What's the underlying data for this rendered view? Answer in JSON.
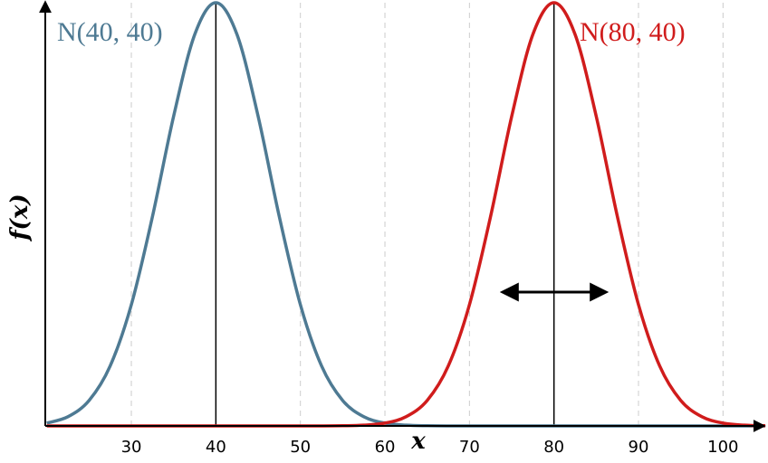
{
  "chart_data": {
    "type": "line",
    "x": [
      20,
      22.5,
      25,
      27.5,
      30,
      32.5,
      35,
      37.5,
      40,
      42.5,
      45,
      47.5,
      50,
      52.5,
      55,
      57.5,
      60,
      62.5,
      65,
      67.5,
      70,
      72.5,
      75,
      77.5,
      80,
      82.5,
      85,
      87.5,
      90,
      92.5,
      95,
      97.5,
      100,
      102.5,
      105
    ],
    "series": [
      {
        "name": "N(40, 40)",
        "color": "#4e7a93",
        "values": [
          0.000425,
          0.00137,
          0.00379,
          0.00895,
          0.01807,
          0.03122,
          0.04615,
          0.05834,
          0.06308,
          0.05834,
          0.04615,
          0.03122,
          0.01807,
          0.00895,
          0.00379,
          0.00137,
          0.000425,
          0.000113,
          2.55e-05,
          0,
          0,
          0,
          0,
          0,
          0,
          0,
          0,
          0,
          0,
          0,
          0,
          0,
          0,
          0,
          0
        ]
      },
      {
        "name": "N(80, 40)",
        "color": "#d01c1c",
        "values": [
          0,
          0,
          0,
          0,
          0,
          0,
          0,
          0,
          0,
          0,
          0,
          0,
          0,
          0,
          2.55e-05,
          0.000113,
          0.000425,
          0.00137,
          0.00379,
          0.00895,
          0.01807,
          0.03122,
          0.04615,
          0.05834,
          0.06308,
          0.05834,
          0.04615,
          0.03122,
          0.01807,
          0.00895,
          0.00379,
          0.00137,
          0.000425,
          0.000113,
          2.55e-05
        ]
      }
    ],
    "mean_lines": [
      40,
      80
    ],
    "x_label": "x",
    "y_label": "f(x)",
    "xlim": [
      20,
      105
    ],
    "ylim": [
      0,
      0.06308
    ],
    "xticks": [
      30,
      40,
      50,
      60,
      70,
      80,
      90,
      100
    ],
    "grid": true
  }
}
